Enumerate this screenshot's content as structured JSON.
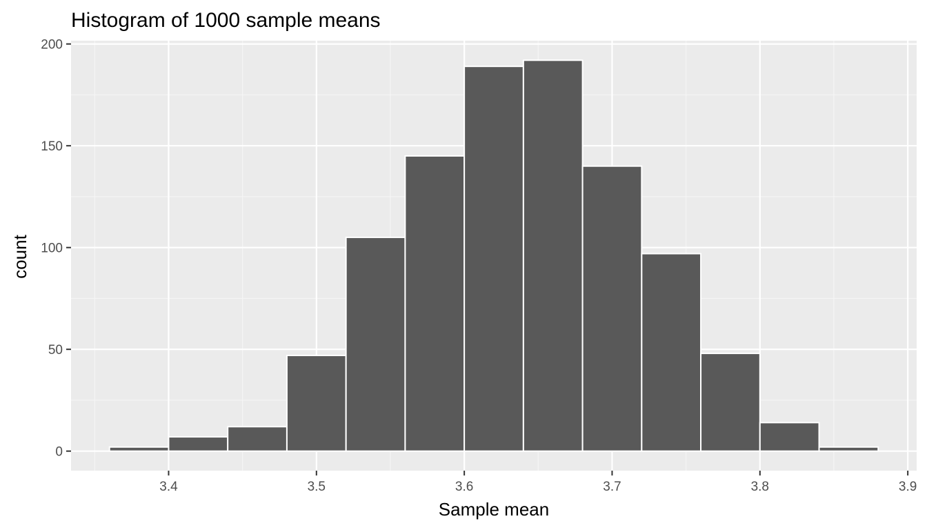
{
  "chart_data": {
    "type": "bar",
    "title": "Histogram of 1000 sample means",
    "xlabel": "Sample mean",
    "ylabel": "count",
    "bin_width": 0.04,
    "bins": [
      {
        "x0": 3.36,
        "x1": 3.4,
        "count": 2
      },
      {
        "x0": 3.4,
        "x1": 3.44,
        "count": 7
      },
      {
        "x0": 3.44,
        "x1": 3.48,
        "count": 12
      },
      {
        "x0": 3.48,
        "x1": 3.52,
        "count": 47
      },
      {
        "x0": 3.52,
        "x1": 3.56,
        "count": 105
      },
      {
        "x0": 3.56,
        "x1": 3.6,
        "count": 145
      },
      {
        "x0": 3.6,
        "x1": 3.64,
        "count": 189
      },
      {
        "x0": 3.64,
        "x1": 3.68,
        "count": 192
      },
      {
        "x0": 3.68,
        "x1": 3.72,
        "count": 140
      },
      {
        "x0": 3.72,
        "x1": 3.76,
        "count": 97
      },
      {
        "x0": 3.76,
        "x1": 3.8,
        "count": 48
      },
      {
        "x0": 3.8,
        "x1": 3.84,
        "count": 14
      },
      {
        "x0": 3.84,
        "x1": 3.88,
        "count": 2
      }
    ],
    "xlim": [
      3.334,
      3.906
    ],
    "ylim": [
      -9.6,
      201.6
    ],
    "x_ticks": [
      3.4,
      3.5,
      3.6,
      3.7,
      3.8,
      3.9
    ],
    "x_tick_labels": [
      "3.4",
      "3.5",
      "3.6",
      "3.7",
      "3.8",
      "3.9"
    ],
    "y_ticks": [
      0,
      50,
      100,
      150,
      200
    ],
    "y_tick_labels": [
      "0",
      "50",
      "100",
      "150",
      "200"
    ],
    "grid": true,
    "legend": "none",
    "colors": {
      "panel_background": "#ebebeb",
      "grid_major": "#ffffff",
      "grid_minor": "#f5f5f5",
      "bar_fill": "#595959",
      "bar_outline": "#ffffff",
      "tick_mark": "#333333",
      "tick_label": "#4d4d4d"
    }
  }
}
